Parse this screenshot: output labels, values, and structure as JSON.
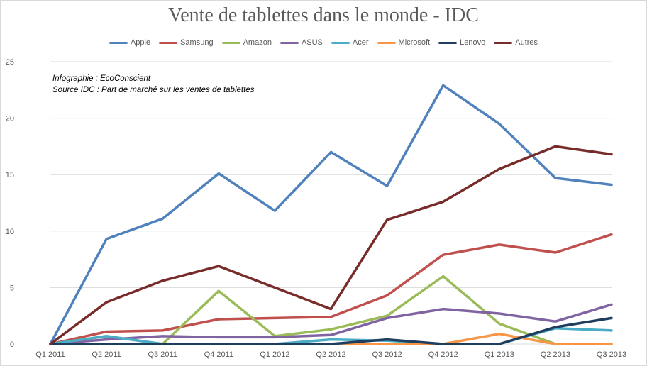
{
  "chart_data": {
    "type": "line",
    "title": "Vente de tablettes dans le monde - IDC",
    "notes": [
      "Infographie : EcoConscient",
      "Source IDC : Part de marché sur les ventes de tablettes"
    ],
    "categories": [
      "Q1 2011",
      "Q2 2011",
      "Q3 2011",
      "Q4 2011",
      "Q1 2012",
      "Q2 2012",
      "Q3 2012",
      "Q4 2012",
      "Q1 2013",
      "Q2 2013",
      "Q3 2013"
    ],
    "ylim": [
      0,
      25
    ],
    "yticks": [
      0,
      5,
      10,
      15,
      20,
      25
    ],
    "grid": true,
    "legend_position": "top",
    "series": [
      {
        "name": "Apple",
        "color": "#4f81bd",
        "values": [
          0,
          9.3,
          11.1,
          15.1,
          11.8,
          17.0,
          14.0,
          22.9,
          19.5,
          14.7,
          14.1
        ]
      },
      {
        "name": "Samsung",
        "color": "#c0504d",
        "values": [
          0,
          1.1,
          1.2,
          2.2,
          2.3,
          2.4,
          4.3,
          7.9,
          8.8,
          8.1,
          9.7
        ]
      },
      {
        "name": "Amazon",
        "color": "#9bbb59",
        "values": [
          0,
          0.7,
          0,
          4.7,
          0.7,
          1.3,
          2.5,
          6.0,
          1.8,
          0,
          0
        ]
      },
      {
        "name": "ASUS",
        "color": "#8064a2",
        "values": [
          0,
          0.4,
          0.7,
          0.6,
          0.6,
          0.8,
          2.3,
          3.1,
          2.7,
          2.0,
          3.5
        ]
      },
      {
        "name": "Acer",
        "color": "#4bacc6",
        "values": [
          0,
          0.7,
          0,
          0,
          0,
          0.4,
          0.3,
          0,
          0,
          1.4,
          1.2
        ]
      },
      {
        "name": "Microsoft",
        "color": "#f79646",
        "values": [
          0,
          0,
          0,
          0,
          0,
          0,
          0,
          0,
          0.9,
          0,
          0
        ]
      },
      {
        "name": "Lenovo",
        "color": "#1f3d5c",
        "values": [
          0,
          0,
          0,
          0,
          0,
          0,
          0.4,
          0,
          0,
          1.5,
          2.3
        ]
      },
      {
        "name": "Autres",
        "color": "#772c2a",
        "values": [
          0,
          3.7,
          5.6,
          6.9,
          5.0,
          3.1,
          11.0,
          12.6,
          15.5,
          17.5,
          16.8
        ]
      }
    ]
  }
}
